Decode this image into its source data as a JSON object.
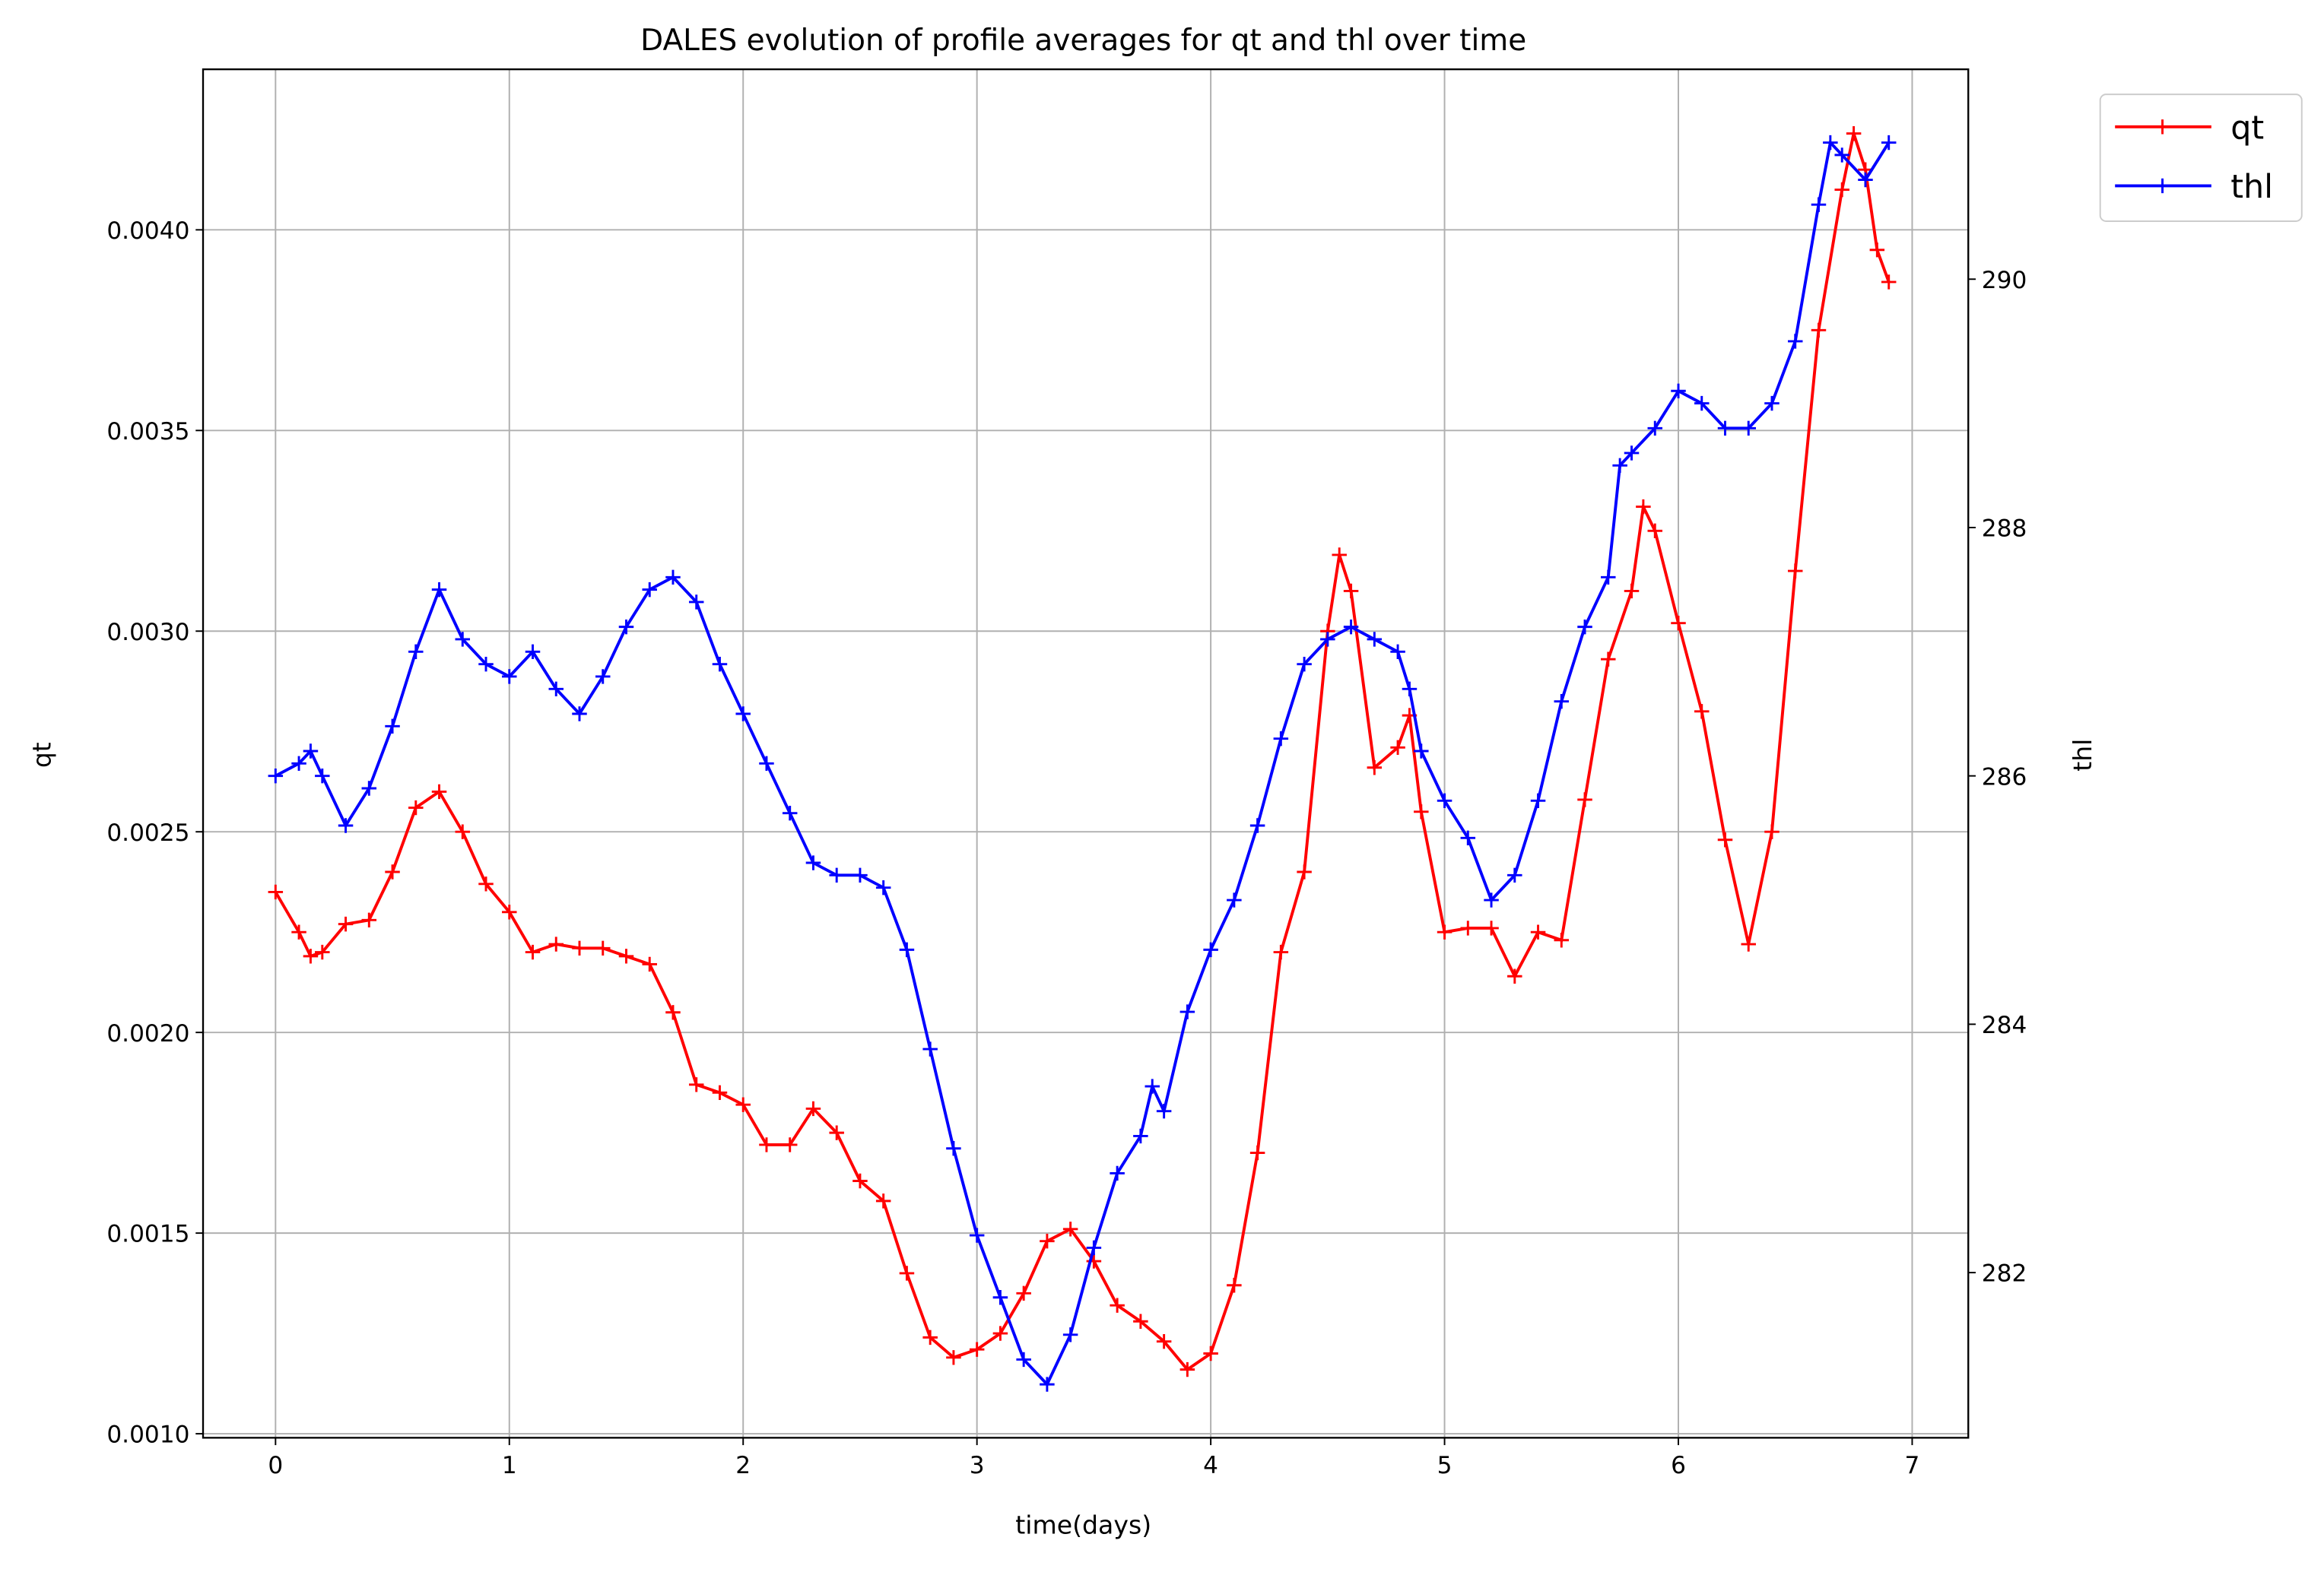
{
  "chart_data": {
    "type": "line",
    "title": "DALES evolution of profile averages for qt and thl over time",
    "xlabel": "time(days)",
    "ylabel": "qt",
    "y2label": "thl",
    "xlim": [
      -0.31,
      7.24
    ],
    "xticks": [
      0,
      1,
      2,
      3,
      4,
      5,
      6,
      7
    ],
    "ylim": [
      0.00099,
      0.0044
    ],
    "yticks": [
      {
        "value": 0.001,
        "label": "0.0010"
      },
      {
        "value": 0.0015,
        "label": "0.0015"
      },
      {
        "value": 0.002,
        "label": "0.0020"
      },
      {
        "value": 0.0025,
        "label": "0.0025"
      },
      {
        "value": 0.003,
        "label": "0.0030"
      },
      {
        "value": 0.0035,
        "label": "0.0035"
      },
      {
        "value": 0.004,
        "label": "0.0040"
      }
    ],
    "y2lim": [
      280.67,
      291.69
    ],
    "y2ticks": [
      282,
      284,
      286,
      288,
      290
    ],
    "grid": true,
    "legend": "outside-upper-right",
    "series": [
      {
        "name": "qt",
        "color": "#ff0000",
        "x": [
          0,
          0.1,
          0.15,
          0.2,
          0.3,
          0.4,
          0.5,
          0.6,
          0.7,
          0.8,
          0.9,
          1.0,
          1.1,
          1.2,
          1.3,
          1.4,
          1.5,
          1.6,
          1.7,
          1.8,
          1.9,
          2.0,
          2.1,
          2.2,
          2.3,
          2.4,
          2.5,
          2.6,
          2.7,
          2.8,
          2.9,
          3.0,
          3.1,
          3.2,
          3.3,
          3.4,
          3.5,
          3.6,
          3.7,
          3.8,
          3.9,
          4.0,
          4.1,
          4.2,
          4.3,
          4.4,
          4.5,
          4.55,
          4.6,
          4.7,
          4.8,
          4.85,
          4.9,
          5.0,
          5.1,
          5.2,
          5.3,
          5.4,
          5.5,
          5.6,
          5.7,
          5.8,
          5.85,
          5.9,
          6.0,
          6.1,
          6.2,
          6.3,
          6.4,
          6.5,
          6.6,
          6.7,
          6.75,
          6.8,
          6.85,
          6.9
        ],
        "values": [
          0.00235,
          0.00225,
          0.00219,
          0.0022,
          0.00227,
          0.00228,
          0.0024,
          0.00256,
          0.0026,
          0.0025,
          0.00237,
          0.0023,
          0.0022,
          0.00222,
          0.00221,
          0.00221,
          0.00219,
          0.00217,
          0.00205,
          0.00187,
          0.00185,
          0.00182,
          0.00172,
          0.00172,
          0.00181,
          0.00175,
          0.00163,
          0.00158,
          0.0014,
          0.00124,
          0.00119,
          0.00121,
          0.00125,
          0.00135,
          0.00148,
          0.00151,
          0.00143,
          0.00132,
          0.00128,
          0.00123,
          0.00116,
          0.0012,
          0.00137,
          0.0017,
          0.0022,
          0.0024,
          0.003,
          0.00319,
          0.0031,
          0.00266,
          0.00271,
          0.00279,
          0.00255,
          0.00225,
          0.00226,
          0.00226,
          0.00214,
          0.00225,
          0.00223,
          0.00258,
          0.00293,
          0.0031,
          0.00331,
          0.00325,
          0.00302,
          0.0028,
          0.00248,
          0.00222,
          0.0025,
          0.00315,
          0.00375,
          0.0041,
          0.00424,
          0.00415,
          0.00395,
          0.00387
        ]
      },
      {
        "name": "thl",
        "color": "#0000ff",
        "axis": "y2",
        "x": [
          0,
          0.1,
          0.15,
          0.2,
          0.3,
          0.4,
          0.5,
          0.6,
          0.7,
          0.8,
          0.9,
          1.0,
          1.1,
          1.2,
          1.3,
          1.4,
          1.5,
          1.6,
          1.7,
          1.8,
          1.9,
          2.0,
          2.1,
          2.2,
          2.3,
          2.4,
          2.5,
          2.6,
          2.7,
          2.8,
          2.9,
          3.0,
          3.1,
          3.2,
          3.3,
          3.4,
          3.5,
          3.6,
          3.7,
          3.75,
          3.8,
          3.9,
          4.0,
          4.1,
          4.2,
          4.3,
          4.4,
          4.5,
          4.6,
          4.7,
          4.8,
          4.85,
          4.9,
          5.0,
          5.1,
          5.2,
          5.3,
          5.4,
          5.5,
          5.6,
          5.7,
          5.75,
          5.8,
          5.9,
          6.0,
          6.1,
          6.2,
          6.3,
          6.4,
          6.5,
          6.6,
          6.65,
          6.7,
          6.8,
          6.9
        ],
        "values": [
          286.0,
          286.1,
          286.2,
          286.0,
          285.6,
          285.9,
          286.4,
          287.0,
          287.5,
          287.1,
          286.9,
          286.8,
          287.0,
          286.7,
          286.5,
          286.8,
          287.2,
          287.5,
          287.6,
          287.4,
          286.9,
          286.5,
          286.1,
          285.7,
          285.3,
          285.2,
          285.2,
          285.1,
          284.6,
          283.8,
          283.0,
          282.3,
          281.8,
          281.3,
          281.1,
          281.5,
          282.2,
          282.8,
          283.1,
          283.5,
          283.3,
          284.1,
          284.6,
          285.0,
          285.6,
          286.3,
          286.9,
          287.1,
          287.2,
          287.1,
          287.0,
          286.7,
          286.2,
          285.8,
          285.5,
          285.0,
          285.2,
          285.8,
          286.6,
          287.2,
          287.6,
          288.5,
          288.6,
          288.8,
          289.1,
          289.0,
          288.8,
          288.8,
          289.0,
          289.5,
          290.6,
          291.1,
          291.0,
          290.8,
          291.1
        ]
      }
    ]
  }
}
